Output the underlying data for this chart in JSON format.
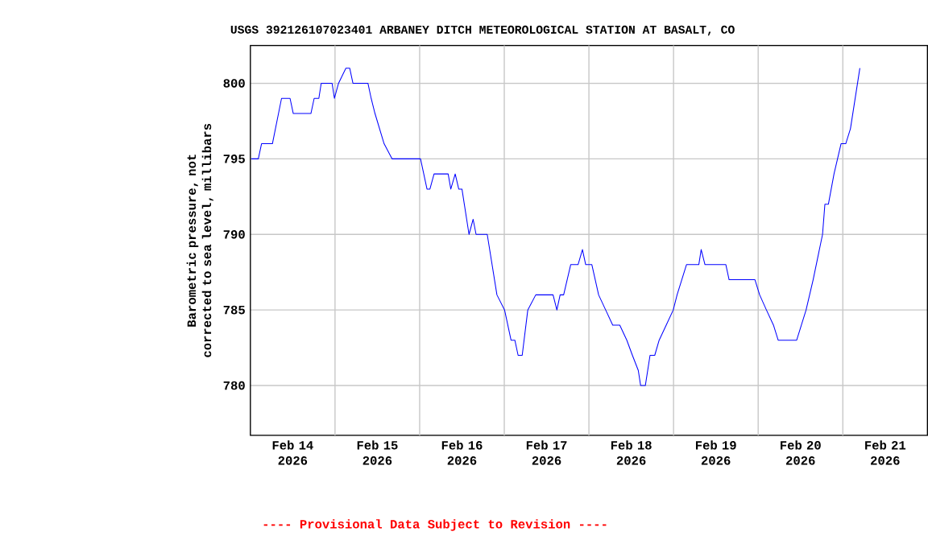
{
  "chart_data": {
    "type": "line",
    "title": "USGS 392126107023401 ARBANEY DITCH METEOROLOGICAL STATION AT BASALT, CO",
    "ylabel": "Barometric pressure, not corrected to sea level, millibars",
    "annotations": [
      "---- Provisional Data Subject to Revision ----"
    ],
    "x": [
      "2026-02-14T00:15",
      "2026-02-14T02:15",
      "2026-02-14T03:10",
      "2026-02-14T06:15",
      "2026-02-14T08:50",
      "2026-02-14T11:15",
      "2026-02-14T12:10",
      "2026-02-14T17:10",
      "2026-02-14T18:05",
      "2026-02-14T19:25",
      "2026-02-14T20:05",
      "2026-02-14T23:10",
      "2026-02-14T23:50",
      "2026-02-15T01:00",
      "2026-02-15T03:05",
      "2026-02-15T04:10",
      "2026-02-15T05:05",
      "2026-02-15T09:20",
      "2026-02-15T10:15",
      "2026-02-15T11:20",
      "2026-02-15T13:55",
      "2026-02-15T16:10",
      "2026-02-16T00:15",
      "2026-02-16T02:05",
      "2026-02-16T02:55",
      "2026-02-16T04:05",
      "2026-02-16T08:05",
      "2026-02-16T08:50",
      "2026-02-16T10:05",
      "2026-02-16T11:05",
      "2026-02-16T12:00",
      "2026-02-16T14:00",
      "2026-02-16T15:10",
      "2026-02-16T16:00",
      "2026-02-16T19:10",
      "2026-02-16T21:55",
      "2026-02-17T00:05",
      "2026-02-17T01:55",
      "2026-02-17T03:00",
      "2026-02-17T03:55",
      "2026-02-17T05:05",
      "2026-02-17T06:40",
      "2026-02-17T08:55",
      "2026-02-17T13:50",
      "2026-02-17T14:55",
      "2026-02-17T15:50",
      "2026-02-17T16:50",
      "2026-02-17T18:50",
      "2026-02-17T20:55",
      "2026-02-17T22:10",
      "2026-02-17T23:05",
      "2026-02-18T00:50",
      "2026-02-18T02:45",
      "2026-02-18T04:45",
      "2026-02-18T06:45",
      "2026-02-18T08:45",
      "2026-02-18T10:45",
      "2026-02-18T12:20",
      "2026-02-18T14:00",
      "2026-02-18T14:40",
      "2026-02-18T16:00",
      "2026-02-18T17:20",
      "2026-02-18T18:40",
      "2026-02-18T19:55",
      "2026-02-18T21:55",
      "2026-02-18T23:55",
      "2026-02-19T01:00",
      "2026-02-19T03:40",
      "2026-02-19T07:10",
      "2026-02-19T07:50",
      "2026-02-19T08:55",
      "2026-02-19T14:50",
      "2026-02-19T15:45",
      "2026-02-19T23:05",
      "2026-02-20T00:25",
      "2026-02-20T02:20",
      "2026-02-20T04:20",
      "2026-02-20T05:40",
      "2026-02-20T10:55",
      "2026-02-20T12:15",
      "2026-02-20T13:35",
      "2026-02-20T15:35",
      "2026-02-20T18:15",
      "2026-02-20T18:55",
      "2026-02-20T19:55",
      "2026-02-20T21:30",
      "2026-02-20T23:30",
      "2026-02-21T00:50",
      "2026-02-21T02:10",
      "2026-02-21T04:50"
    ],
    "series": [
      {
        "color": "#0000ff",
        "values": [
          795,
          795,
          796,
          796,
          799,
          799,
          798,
          798,
          799,
          799,
          800,
          800,
          799,
          800,
          801,
          801,
          800,
          800,
          799,
          798,
          796,
          795,
          795,
          793,
          793,
          794,
          794,
          793,
          794,
          793,
          793,
          790,
          791,
          790,
          790,
          786,
          785,
          783,
          783,
          782,
          782,
          785,
          786,
          786,
          785,
          786,
          786,
          788,
          788,
          789,
          788,
          788,
          786,
          785,
          784,
          784,
          783,
          782,
          781,
          780,
          780,
          782,
          782,
          783,
          784,
          785,
          786,
          788,
          788,
          789,
          788,
          788,
          787,
          787,
          786,
          785,
          784,
          783,
          783,
          784,
          785,
          787,
          790,
          792,
          792,
          794,
          796,
          796,
          797,
          801
        ]
      }
    ],
    "xlim": [
      "2026-02-14T00:00",
      "2026-02-22T00:00"
    ],
    "xticks": [
      {
        "value": "2026-02-14T12:00",
        "label": "Feb 14 2026"
      },
      {
        "value": "2026-02-15T00:00",
        "label": null
      },
      {
        "value": "2026-02-15T12:00",
        "label": "Feb 15 2026"
      },
      {
        "value": "2026-02-16T00:00",
        "label": null
      },
      {
        "value": "2026-02-16T12:00",
        "label": "Feb 16 2026"
      },
      {
        "value": "2026-02-17T00:00",
        "label": null
      },
      {
        "value": "2026-02-17T12:00",
        "label": "Feb 17 2026"
      },
      {
        "value": "2026-02-18T00:00",
        "label": null
      },
      {
        "value": "2026-02-18T12:00",
        "label": "Feb 18 2026"
      },
      {
        "value": "2026-02-19T00:00",
        "label": null
      },
      {
        "value": "2026-02-19T12:00",
        "label": "Feb 19 2026"
      },
      {
        "value": "2026-02-20T00:00",
        "label": null
      },
      {
        "value": "2026-02-20T12:00",
        "label": "Feb 20 2026"
      },
      {
        "value": "2026-02-21T00:00",
        "label": null
      },
      {
        "value": "2026-02-21T12:00",
        "label": "Feb 21 2026"
      }
    ],
    "ylim": [
      776.7,
      802.5
    ],
    "yticks": [
      780,
      785,
      790,
      795,
      800
    ],
    "grid": true
  }
}
